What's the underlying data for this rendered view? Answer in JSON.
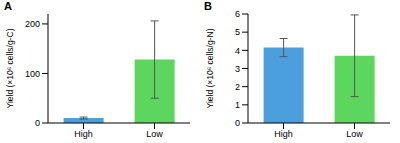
{
  "chart_data": [
    {
      "type": "bar",
      "title": "A",
      "y_label": "Yield (×10⁶ cells/g-C)",
      "categories": [
        "High",
        "Low"
      ],
      "values": [
        10,
        128
      ],
      "error": [
        2,
        78
      ],
      "colors": [
        "#4a9fdc",
        "#5cd65c"
      ],
      "ylim": [
        0,
        220
      ],
      "yticks": [
        0,
        100,
        200
      ]
    },
    {
      "type": "bar",
      "title": "B",
      "y_label": "Yield (×10⁶ cells/g-N)",
      "categories": [
        "High",
        "Low"
      ],
      "values": [
        4.15,
        3.7
      ],
      "error": [
        0.5,
        2.25
      ],
      "colors": [
        "#4a9fdc",
        "#5cd65c"
      ],
      "ylim": [
        0,
        6
      ],
      "yticks": [
        0,
        1,
        2,
        3,
        4,
        5,
        6
      ]
    }
  ]
}
